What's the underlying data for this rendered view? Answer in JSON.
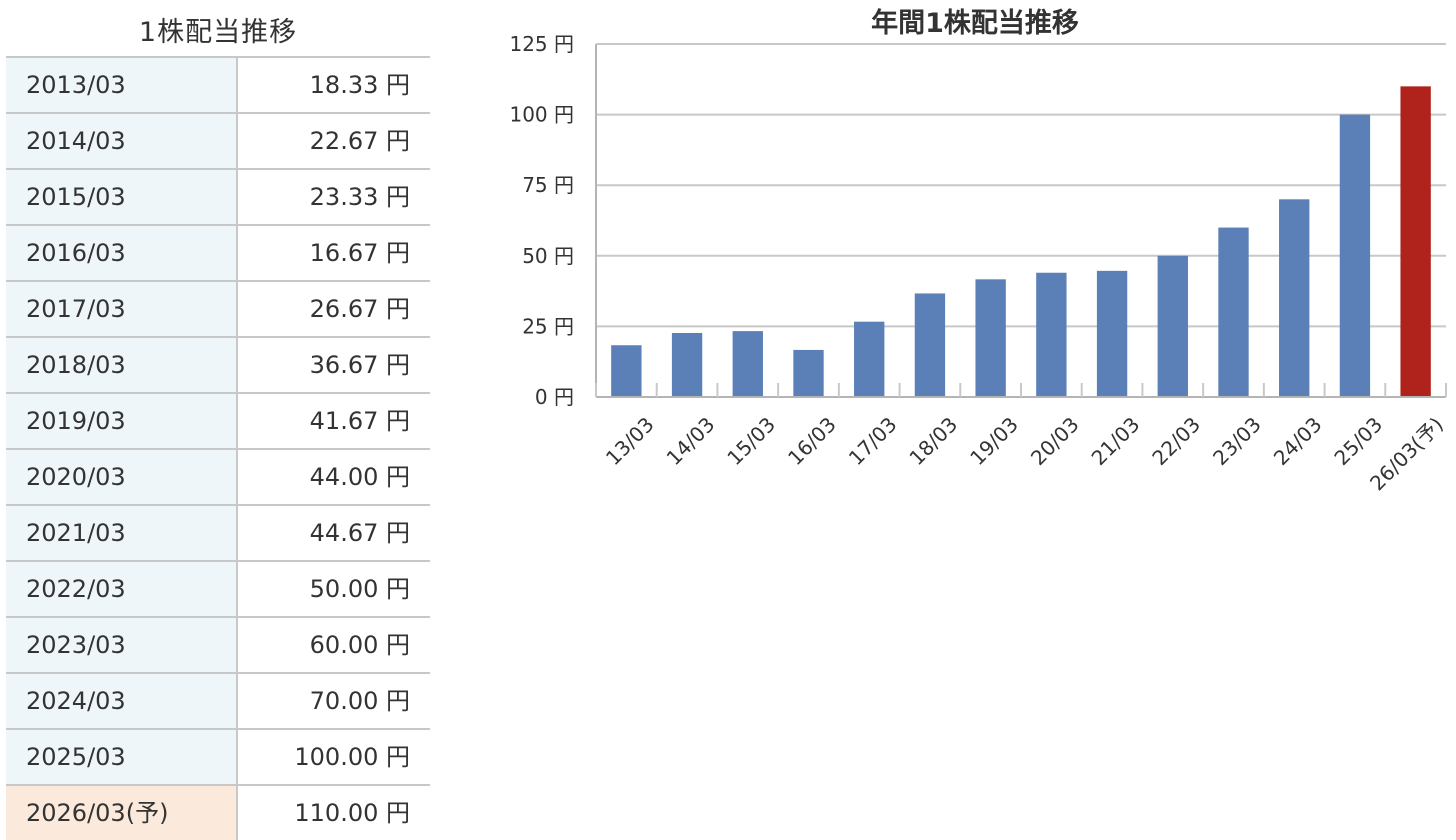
{
  "table": {
    "title": "1株配当推移",
    "rows": [
      {
        "year": "2013/03",
        "amount": "18.33 円"
      },
      {
        "year": "2014/03",
        "amount": "22.67 円"
      },
      {
        "year": "2015/03",
        "amount": "23.33 円"
      },
      {
        "year": "2016/03",
        "amount": "16.67 円"
      },
      {
        "year": "2017/03",
        "amount": "26.67 円"
      },
      {
        "year": "2018/03",
        "amount": "36.67 円"
      },
      {
        "year": "2019/03",
        "amount": "41.67 円"
      },
      {
        "year": "2020/03",
        "amount": "44.00 円"
      },
      {
        "year": "2021/03",
        "amount": "44.67 円"
      },
      {
        "year": "2022/03",
        "amount": "50.00 円"
      },
      {
        "year": "2023/03",
        "amount": "60.00 円"
      },
      {
        "year": "2024/03",
        "amount": "70.00 円"
      },
      {
        "year": "2025/03",
        "amount": "100.00 円"
      },
      {
        "year": "2026/03(予)",
        "amount": "110.00 円",
        "forecast": true
      }
    ]
  },
  "chart_data": {
    "type": "bar",
    "title": "年間1株配当推移",
    "categories": [
      "13/03",
      "14/03",
      "15/03",
      "16/03",
      "17/03",
      "18/03",
      "19/03",
      "20/03",
      "21/03",
      "22/03",
      "23/03",
      "24/03",
      "25/03",
      "26/03(予)"
    ],
    "values": [
      18.33,
      22.67,
      23.33,
      16.67,
      26.67,
      36.67,
      41.67,
      44.0,
      44.67,
      50.0,
      60.0,
      70.0,
      100.0,
      110.0
    ],
    "forecast_index": 13,
    "yticks": [
      0,
      25,
      50,
      75,
      100,
      125
    ],
    "ytick_labels": [
      "0 円",
      "25 円",
      "50 円",
      "75 円",
      "100 円",
      "125 円"
    ],
    "ylim": [
      0,
      125
    ],
    "xlabel": "",
    "ylabel": "",
    "grid": true,
    "colors": {
      "bar": "#5b80b8",
      "forecast_bar": "#b0231c",
      "grid": "#c8c8c8",
      "axis": "#b4b4b4"
    }
  }
}
